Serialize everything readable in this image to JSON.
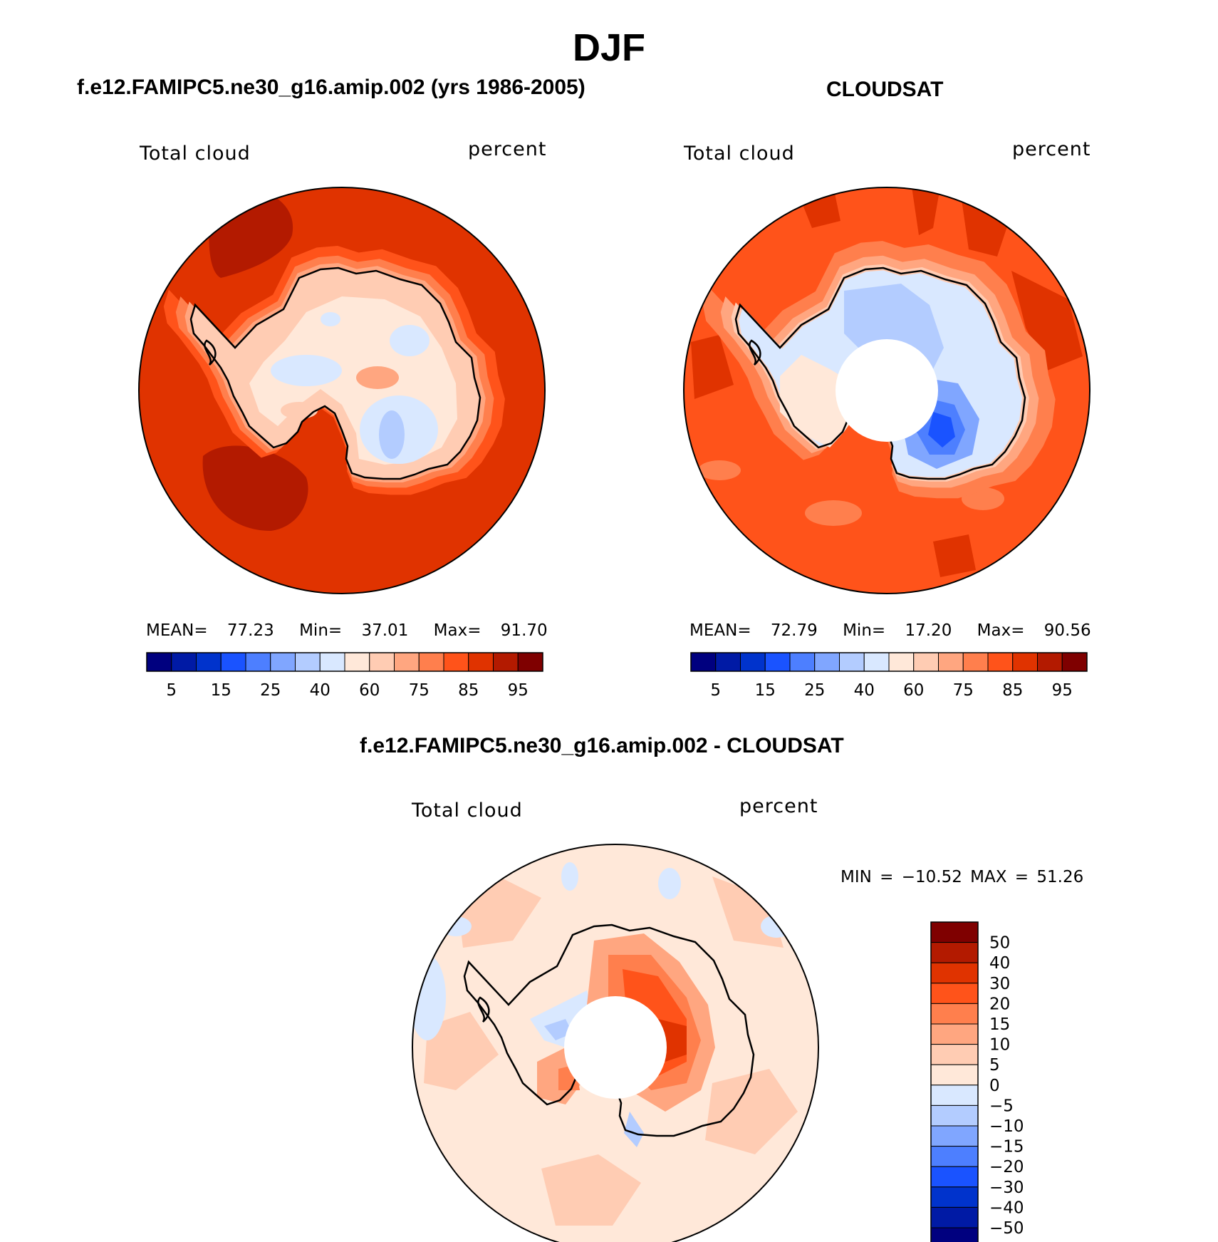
{
  "figure": {
    "season": "DJF",
    "diff_title": "f.e12.FAMIPC5.ne30_g16.amip.002 - CLOUDSAT"
  },
  "panels": [
    {
      "title": "f.e12.FAMIPC5.ne30_g16.amip.002 (yrs 1986-2005)",
      "variable": "Total cloud",
      "units": "percent",
      "stats": {
        "mean_label": "MEAN=",
        "mean": "77.23",
        "min_label": "Min=",
        "min": "37.01",
        "max_label": "Max=",
        "max": "91.70"
      }
    },
    {
      "title": "CLOUDSAT",
      "variable": "Total cloud",
      "units": "percent",
      "stats": {
        "mean_label": "MEAN=",
        "mean": "72.79",
        "min_label": "Min=",
        "min": "17.20",
        "max_label": "Max=",
        "max": "90.56"
      }
    },
    {
      "title": "f.e12.FAMIPC5.ne30_g16.amip.002 - CLOUDSAT",
      "variable": "Total cloud",
      "units": "percent",
      "stats_text": "MIN = −10.52 MAX =  51.26"
    }
  ],
  "colorbar_abs": {
    "colors": [
      "#00007f",
      "#001aa5",
      "#0033cc",
      "#1a53ff",
      "#4d7fff",
      "#80a6ff",
      "#b3ccff",
      "#d9e8ff",
      "#ffe8d9",
      "#ffccb3",
      "#ffa680",
      "#ff7f4d",
      "#ff531a",
      "#e03300",
      "#b31a00",
      "#7f0000"
    ],
    "tick_labels": [
      "5",
      "15",
      "25",
      "40",
      "60",
      "75",
      "85",
      "95"
    ]
  },
  "colorbar_diff": {
    "colors_top_to_bottom": [
      "#7f0000",
      "#b31a00",
      "#e03300",
      "#ff531a",
      "#ff7f4d",
      "#ffa680",
      "#ffccb3",
      "#ffe8d9",
      "#d9e8ff",
      "#b3ccff",
      "#80a6ff",
      "#4d7fff",
      "#1a53ff",
      "#0033cc",
      "#001aa5",
      "#00007f"
    ],
    "tick_labels": [
      "50",
      "40",
      "30",
      "20",
      "15",
      "10",
      "5",
      "0",
      "−5",
      "−10",
      "−15",
      "−20",
      "−30",
      "−40",
      "−50"
    ]
  },
  "maps": {
    "projection": "south-polar-stereographic",
    "region": "Antarctica / Southern Ocean",
    "model_background": "#e03300",
    "cloudsat_background": "#ff531a",
    "diff_background": "#ffe8d9",
    "hole_color": "#ffffff",
    "coast_color": "#000000"
  }
}
